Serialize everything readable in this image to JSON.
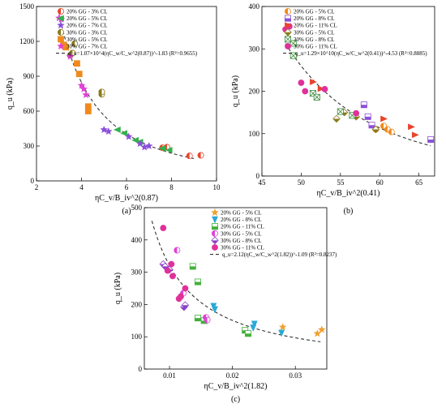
{
  "chart_data": [
    {
      "type": "scatter",
      "panel_label": "(a)",
      "xlabel": "ηC_v/B_iv^2(0.87)",
      "ylabel": "q_u (kPa)",
      "xlim": [
        2,
        10
      ],
      "ylim": [
        0,
        1500
      ],
      "xticks": [
        "2",
        "4",
        "6",
        "8",
        "10"
      ],
      "yticks": [
        "0",
        "300",
        "600",
        "900",
        "1200",
        "1500"
      ],
      "fit_label": "q_u=1.07×10^4(ηC_w/C_w^2(0.87))^-1.83 (R²=0.9655)",
      "fit": {
        "a": 10700,
        "b": -1.83,
        "x_from": 3.0,
        "x_to": 9.0
      },
      "series": [
        {
          "name": "20% GG - 3% CL",
          "color": "#e8442c",
          "marker": "circle-half",
          "points": [
            [
              7.6,
              285
            ],
            [
              7.8,
              290
            ],
            [
              8.8,
              215
            ],
            [
              9.3,
              220
            ]
          ]
        },
        {
          "name": "20% GG - 5% CL",
          "color": "#31b24a",
          "marker": "tri-left",
          "points": [
            [
              5.6,
              440
            ],
            [
              5.9,
              410
            ],
            [
              6.4,
              350
            ],
            [
              6.6,
              335
            ],
            [
              7.6,
              280
            ],
            [
              7.9,
              265
            ]
          ]
        },
        {
          "name": "20% GG - 7% CL",
          "color": "#8a4fd8",
          "marker": "star",
          "points": [
            [
              5.0,
              440
            ],
            [
              5.2,
              425
            ],
            [
              6.1,
              380
            ],
            [
              6.6,
              320
            ],
            [
              6.8,
              290
            ],
            [
              7.0,
              300
            ]
          ]
        },
        {
          "name": "30% GG - 3% CL",
          "color": "#8a7a18",
          "marker": "circle-half",
          "points": [
            [
              3.5,
              1080
            ],
            [
              3.6,
              1100
            ],
            [
              3.7,
              1180
            ],
            [
              4.9,
              745
            ],
            [
              4.9,
              765
            ]
          ]
        },
        {
          "name": "30% GG - 5% CL",
          "color": "#f08a1c",
          "marker": "square",
          "points": [
            [
              3.2,
              1170
            ],
            [
              3.3,
              1150
            ],
            [
              3.8,
              1010
            ],
            [
              3.9,
              920
            ],
            [
              4.3,
              640
            ],
            [
              4.3,
              600
            ]
          ]
        },
        {
          "name": "30% GG - 7% CL",
          "color": "#e040d8",
          "marker": "star",
          "points": [
            [
              3.0,
              1400
            ],
            [
              3.1,
              1390
            ],
            [
              3.5,
              1070
            ],
            [
              4.0,
              820
            ],
            [
              4.1,
              790
            ],
            [
              4.2,
              740
            ]
          ]
        }
      ]
    },
    {
      "type": "scatter",
      "panel_label": "(b)",
      "xlabel": "ηC_v/B_iv^2(0.41)",
      "ylabel": "q_u (kPa)",
      "xlim": [
        45,
        67
      ],
      "ylim": [
        0,
        400
      ],
      "xticks": [
        "45",
        "50",
        "55",
        "60",
        "65"
      ],
      "yticks": [
        "0",
        "100",
        "200",
        "300",
        "400"
      ],
      "fit_label": "q_u=1.29×10^10(ηC_w/C_w^2(0.41))^-4.53 (R²=0.8885)",
      "fit": {
        "a": 12900000000.0,
        "b": -4.53,
        "x_from": 48.0,
        "x_to": 66.5
      },
      "series": [
        {
          "name": "20% GG - 5% CL",
          "color": "#f08a1c",
          "marker": "circle-half",
          "points": [
            [
              59.5,
              110
            ],
            [
              60.5,
              118
            ],
            [
              61.0,
              110
            ],
            [
              61.5,
              104
            ]
          ]
        },
        {
          "name": "20% GG - 8% CL",
          "color": "#8a4fd8",
          "marker": "square-half",
          "points": [
            [
              58.0,
              168
            ],
            [
              58.5,
              140
            ],
            [
              59.0,
              120
            ],
            [
              66.5,
              86
            ]
          ]
        },
        {
          "name": "20% GG - 11% CL",
          "color": "#e8442c",
          "marker": "tri-right",
          "points": [
            [
              51.5,
              222
            ],
            [
              52.5,
              206
            ],
            [
              60.5,
              135
            ],
            [
              64.0,
              116
            ],
            [
              64.5,
              97
            ]
          ]
        },
        {
          "name": "30% GG - 5% CL",
          "color": "#8a7a18",
          "marker": "diamond-half",
          "points": [
            [
              54.5,
              135
            ],
            [
              55.5,
              150
            ],
            [
              57.0,
              140
            ],
            [
              59.5,
              110
            ]
          ]
        },
        {
          "name": "30% GG - 8% CL",
          "color": "#3a8a3a",
          "marker": "square-x",
          "points": [
            [
              49.0,
              313
            ],
            [
              49.0,
              284
            ],
            [
              51.5,
              195
            ],
            [
              52.0,
              186
            ],
            [
              55.0,
              152
            ],
            [
              56.5,
              143
            ]
          ]
        },
        {
          "name": "30% GG - 11% CL",
          "color": "#e0309a",
          "marker": "circle",
          "points": [
            [
              48.0,
              346
            ],
            [
              48.5,
              353
            ],
            [
              50.0,
              220
            ],
            [
              50.5,
              200
            ],
            [
              53.0,
              205
            ],
            [
              57.0,
              148
            ]
          ]
        }
      ]
    },
    {
      "type": "scatter",
      "panel_label": "(c)",
      "xlabel": "ηC_v/B_iv^2(1.82)",
      "ylabel": "q_u (kPa)",
      "xlim": [
        0.006,
        0.035
      ],
      "ylim": [
        0,
        500
      ],
      "xticks": [
        "0.01",
        "0.02",
        "0.03"
      ],
      "yticks": [
        "0",
        "100",
        "200",
        "300",
        "400",
        "500"
      ],
      "fit_label": "q_u=2.12(ηC_w/C_w^2(1.82))^-1.09 (R²=0.8237)",
      "fit": {
        "a": 2.12,
        "b": -1.09,
        "x_from": 0.0072,
        "x_to": 0.034
      },
      "series": [
        {
          "name": "20% GG - 5% CL",
          "color": "#f0a030",
          "marker": "star",
          "points": [
            [
              0.028,
              130
            ],
            [
              0.0335,
              110
            ],
            [
              0.0342,
              122
            ]
          ]
        },
        {
          "name": "20% GG - 8% CL",
          "color": "#2aa8d8",
          "marker": "tri-down",
          "points": [
            [
              0.017,
              195
            ],
            [
              0.0172,
              185
            ],
            [
              0.0235,
              140
            ],
            [
              0.0233,
              128
            ],
            [
              0.0278,
              112
            ]
          ]
        },
        {
          "name": "20% GG - 11% CL",
          "color": "#42b03a",
          "marker": "square-half",
          "points": [
            [
              0.0137,
              318
            ],
            [
              0.0145,
              270
            ],
            [
              0.0145,
              158
            ],
            [
              0.0155,
              150
            ],
            [
              0.022,
              120
            ],
            [
              0.0225,
              110
            ]
          ]
        },
        {
          "name": "30% GG - 5% CL",
          "color": "#e040d8",
          "marker": "circle-half",
          "points": [
            [
              0.0112,
              368
            ],
            [
              0.0122,
              235
            ],
            [
              0.0158,
              160
            ],
            [
              0.016,
              152
            ]
          ]
        },
        {
          "name": "30% GG - 8% CL",
          "color": "#8a40c8",
          "marker": "diamond-half",
          "points": [
            [
              0.009,
              325
            ],
            [
              0.0093,
              318
            ],
            [
              0.01,
              308
            ],
            [
              0.0123,
              192
            ],
            [
              0.0125,
              198
            ]
          ]
        },
        {
          "name": "30% GG - 11% CL",
          "color": "#e0309a",
          "marker": "circle",
          "points": [
            [
              0.009,
              437
            ],
            [
              0.0097,
              305
            ],
            [
              0.0103,
              325
            ],
            [
              0.0105,
              288
            ],
            [
              0.0115,
              218
            ],
            [
              0.0118,
              225
            ],
            [
              0.0125,
              250
            ]
          ]
        }
      ]
    }
  ]
}
